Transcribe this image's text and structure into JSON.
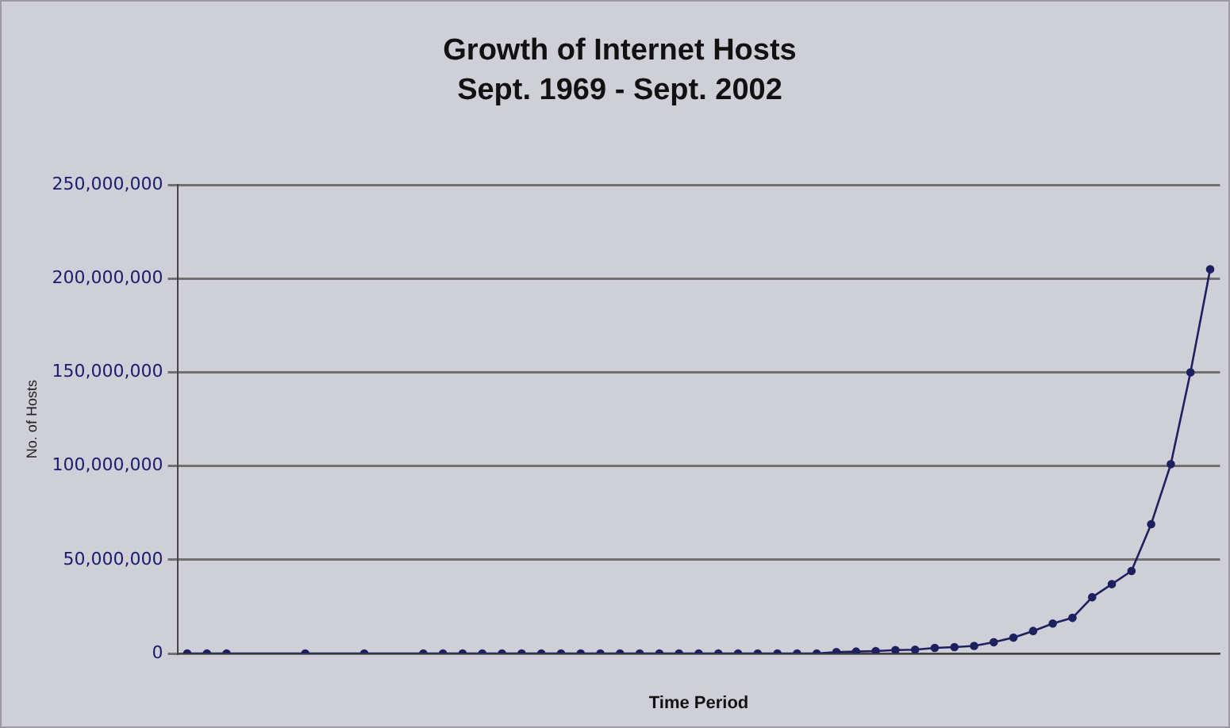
{
  "chart_data": {
    "type": "line",
    "title": "Growth of Internet Hosts",
    "subtitle": "Sept. 1969 - Sept. 2002",
    "xlabel": "Time Period",
    "ylabel": "No. of Hosts",
    "categories": [
      null,
      null,
      null,
      null,
      null,
      null,
      null,
      null,
      null,
      null,
      null,
      null,
      null,
      null,
      null,
      null,
      null,
      null,
      null,
      null,
      null,
      null,
      null,
      null,
      null,
      null,
      null,
      null,
      null,
      null,
      null,
      null,
      null,
      null,
      null,
      null,
      null,
      null,
      null,
      null,
      null,
      null,
      null,
      null,
      null,
      null,
      null,
      null,
      null,
      null,
      null,
      null,
      null
    ],
    "series": [
      {
        "color": "#1f2060",
        "values": [
          0,
          0,
          0,
          null,
          null,
          null,
          0,
          null,
          null,
          0,
          null,
          null,
          0,
          0,
          0,
          0,
          0,
          0,
          0,
          0,
          0,
          0,
          0,
          0,
          0,
          0,
          0,
          0,
          0,
          0,
          0,
          0,
          0,
          700000,
          1000000,
          1300000,
          1800000,
          2000000,
          3000000,
          3400000,
          4000000,
          6000000,
          8500000,
          12000000,
          16000000,
          19000000,
          30000000,
          37000000,
          44000000,
          69000000,
          101000000,
          150000000,
          205000000
        ]
      }
    ],
    "ylim": [
      0,
      250000000
    ],
    "yticks": [
      {
        "value": 0,
        "label": "0"
      },
      {
        "value": 50000000,
        "label": "50,000,000"
      },
      {
        "value": 100000000,
        "label": "100,000,000"
      },
      {
        "value": 150000000,
        "label": "150,000,000"
      },
      {
        "value": 200000000,
        "label": "200,000,000"
      },
      {
        "value": 250000000,
        "label": "250,000,000"
      }
    ],
    "grid": "y",
    "legend": false,
    "marker": "circle",
    "line_style": "solid"
  }
}
